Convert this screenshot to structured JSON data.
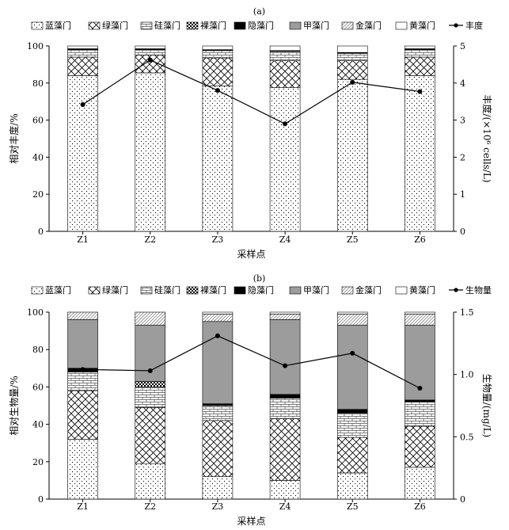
{
  "chart_data": [
    {
      "type": "bar",
      "stacked": true,
      "panel_label": "(a)",
      "categories": [
        "Z1",
        "Z2",
        "Z3",
        "Z4",
        "Z5",
        "Z6"
      ],
      "xlabel": "采样点",
      "ylabel": "相对丰度/%",
      "y2label": "丰度/(×10⁶ cells/L)",
      "ylim": [
        0,
        100
      ],
      "y2lim": [
        0,
        5
      ],
      "yticks": [
        0,
        20,
        40,
        60,
        80,
        100
      ],
      "y2ticks": [
        0,
        1,
        2,
        3,
        4,
        5
      ],
      "legend_position": "top",
      "series": [
        {
          "name": "蓝藻门",
          "values": [
            84,
            85.5,
            78.5,
            77.5,
            82,
            84
          ]
        },
        {
          "name": "绿藻门",
          "values": [
            10,
            9.5,
            15,
            14.5,
            10,
            10
          ]
        },
        {
          "name": "硅藻门",
          "values": [
            4,
            3,
            4,
            5,
            4,
            4
          ]
        },
        {
          "name": "裸藻门",
          "values": [
            0,
            0,
            0,
            0,
            0,
            0
          ]
        },
        {
          "name": "隐藻门",
          "values": [
            0.5,
            0.5,
            0.5,
            0.5,
            0.5,
            0.5
          ]
        },
        {
          "name": "甲藻门",
          "values": [
            0,
            0,
            0,
            0,
            0,
            0
          ]
        },
        {
          "name": "金藻门",
          "values": [
            0,
            0,
            0,
            0,
            0,
            0
          ]
        },
        {
          "name": "黄藻门",
          "values": [
            1.5,
            1.5,
            2,
            2.5,
            3.5,
            1.5
          ]
        }
      ],
      "line": {
        "name": "丰度",
        "values": [
          3.42,
          4.62,
          3.8,
          2.9,
          4.02,
          3.77
        ]
      }
    },
    {
      "type": "bar",
      "stacked": true,
      "panel_label": "(b)",
      "categories": [
        "Z1",
        "Z2",
        "Z3",
        "Z4",
        "Z5",
        "Z6"
      ],
      "xlabel": "采样点",
      "ylabel": "相对生物量/%",
      "y2label": "生物量/(mg/L)",
      "ylim": [
        0,
        100
      ],
      "y2lim": [
        0,
        1.5
      ],
      "yticks": [
        0,
        20,
        40,
        60,
        80,
        100
      ],
      "y2ticks": [
        0,
        0.5,
        1.0,
        1.5
      ],
      "legend_position": "top",
      "series": [
        {
          "name": "蓝藻门",
          "values": [
            32,
            19,
            12,
            10,
            14,
            17
          ]
        },
        {
          "name": "绿藻门",
          "values": [
            26,
            30,
            30,
            33,
            19,
            22
          ]
        },
        {
          "name": "硅藻门",
          "values": [
            10,
            11,
            8,
            11,
            13,
            13
          ]
        },
        {
          "name": "裸藻门",
          "values": [
            0,
            3,
            0,
            0,
            0,
            0
          ]
        },
        {
          "name": "隐藻门",
          "values": [
            2,
            0,
            1,
            2,
            2,
            1
          ]
        },
        {
          "name": "甲藻门",
          "values": [
            26,
            30,
            44,
            40,
            45,
            40
          ]
        },
        {
          "name": "金藻门",
          "values": [
            4,
            7,
            4,
            3,
            6,
            6
          ]
        },
        {
          "name": "黄藻门",
          "values": [
            0,
            0,
            1,
            1,
            1,
            1
          ]
        }
      ],
      "line": {
        "name": "生物量",
        "values": [
          1.04,
          1.03,
          1.31,
          1.07,
          1.17,
          0.89
        ]
      }
    }
  ],
  "style": {
    "bar_edge": "#000000",
    "gray_fill": "#9c9c9c",
    "line_color": "#000000"
  }
}
